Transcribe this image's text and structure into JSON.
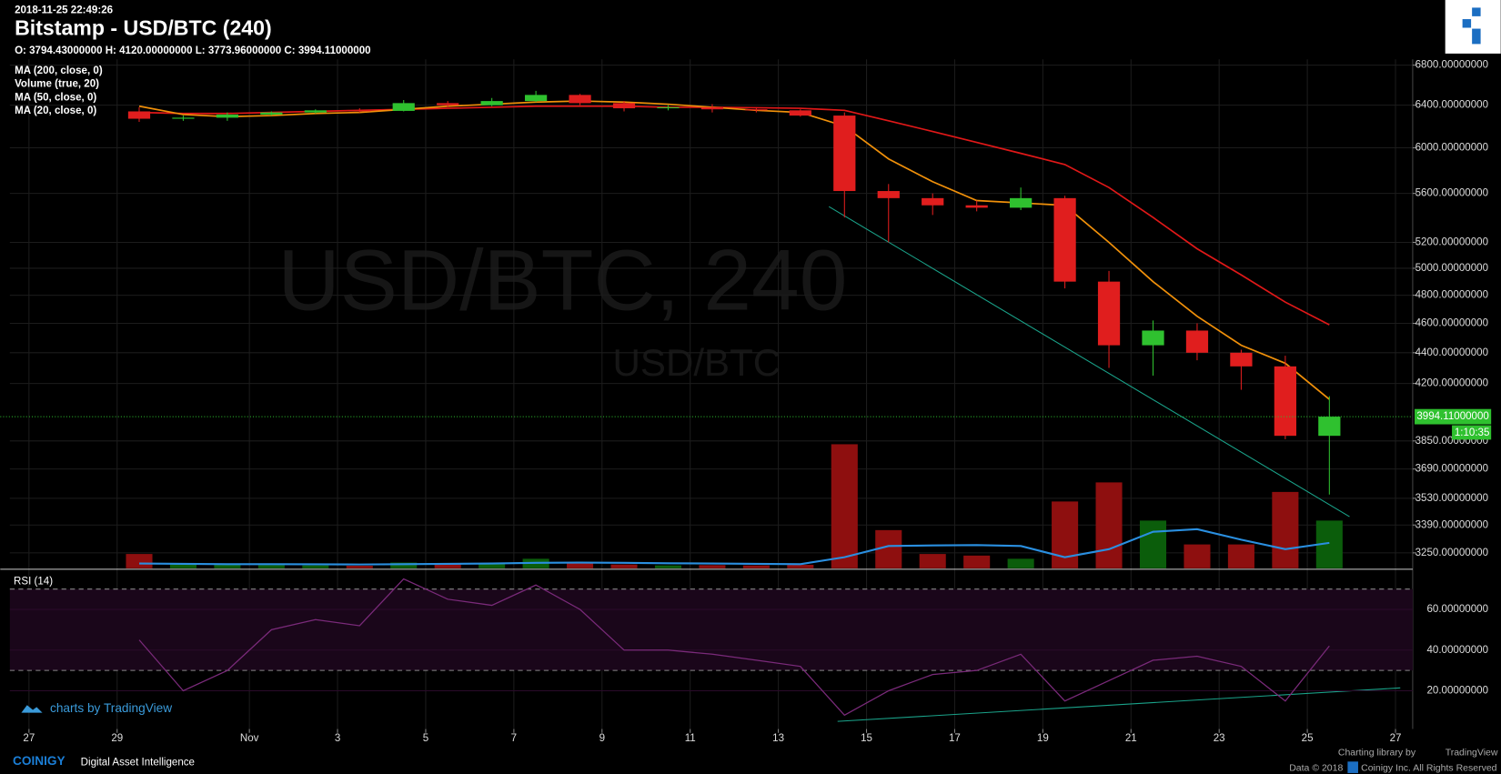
{
  "header": {
    "timestamp": "2018-11-25 22:49:26",
    "title": "Bitstamp - USD/BTC (240)",
    "ohlc": "O: 3794.43000000 H: 4120.00000000 L: 3773.96000000 C: 3994.11000000"
  },
  "watermark": {
    "line1": "USD/BTC, 240",
    "line2": "USD/BTC"
  },
  "branding": {
    "tradingview": "charts by TradingView",
    "coinigy": "COINIGY",
    "tagline": "Digital Asset Intelligence",
    "library": "Charting library by",
    "library_name": "TradingView",
    "copyright": "Data © 2018",
    "company": "Coinigy Inc. All Rights Reserved"
  },
  "chart_data": [
    {
      "type": "candlestick",
      "x": [
        "2018-10-29",
        "2018-10-30",
        "2018-10-31",
        "2018-11-01",
        "2018-11-02",
        "2018-11-03",
        "2018-11-04",
        "2018-11-05",
        "2018-11-06",
        "2018-11-07",
        "2018-11-08",
        "2018-11-09",
        "2018-11-10",
        "2018-11-11",
        "2018-11-12",
        "2018-11-13",
        "2018-11-14",
        "2018-11-15",
        "2018-11-16",
        "2018-11-17",
        "2018-11-18",
        "2018-11-19",
        "2018-11-20",
        "2018-11-21",
        "2018-11-22",
        "2018-11-23",
        "2018-11-24",
        "2018-11-25"
      ],
      "open": [
        6340,
        6270,
        6280,
        6310,
        6330,
        6350,
        6345,
        6420,
        6400,
        6440,
        6500,
        6420,
        6370,
        6380,
        6360,
        6350,
        6300,
        5620,
        5560,
        5500,
        5480,
        5560,
        4900,
        4450,
        4550,
        4400,
        4310,
        3880
      ],
      "high": [
        6380,
        6300,
        6330,
        6340,
        6360,
        6370,
        6450,
        6440,
        6470,
        6540,
        6510,
        6440,
        6400,
        6410,
        6380,
        6360,
        6330,
        5680,
        5600,
        5540,
        5650,
        5580,
        4980,
        4620,
        4600,
        4420,
        4380,
        4120
      ],
      "low": [
        6240,
        6250,
        6250,
        6300,
        6320,
        6330,
        6340,
        6380,
        6390,
        6430,
        6400,
        6340,
        6350,
        6330,
        6330,
        6290,
        5400,
        5200,
        5420,
        5450,
        5460,
        4850,
        4300,
        4250,
        4350,
        4160,
        3860,
        3550
      ],
      "close": [
        6270,
        6280,
        6310,
        6330,
        6350,
        6345,
        6420,
        6400,
        6440,
        6500,
        6420,
        6370,
        6380,
        6360,
        6350,
        6300,
        5620,
        5560,
        5500,
        5480,
        5560,
        4900,
        4450,
        4550,
        4400,
        4310,
        3880,
        3994.11
      ],
      "up_color": "#2fc12f",
      "down_color": "#e01e1e",
      "log_scale": true,
      "grid": true,
      "ylim": [
        3175,
        6860
      ],
      "yticks": [
        {
          "value": 6800,
          "label": "6800.00000000"
        },
        {
          "value": 6400,
          "label": "6400.00000000"
        },
        {
          "value": 6000,
          "label": "6000.00000000"
        },
        {
          "value": 5600,
          "label": "5600.00000000"
        },
        {
          "value": 5200,
          "label": "5200.00000000"
        },
        {
          "value": 5000,
          "label": "5000.00000000"
        },
        {
          "value": 4800,
          "label": "4800.00000000"
        },
        {
          "value": 4600,
          "label": "4600.00000000"
        },
        {
          "value": 4400,
          "label": "4400.00000000"
        },
        {
          "value": 4200,
          "label": "4200.00000000"
        },
        {
          "value": 3850,
          "label": "3850.00000000"
        },
        {
          "value": 3690,
          "label": "3690.00000000"
        },
        {
          "value": 3530,
          "label": "3530.00000000"
        },
        {
          "value": 3390,
          "label": "3390.00000000"
        },
        {
          "value": 3250,
          "label": "3250.00000000"
        }
      ],
      "xlim": [
        "2018-10-26T13:35",
        "2018-11-27T09:22"
      ],
      "xticks": [
        {
          "value": "2018-10-27",
          "label": "27"
        },
        {
          "value": "2018-10-29",
          "label": "29"
        },
        {
          "value": "2018-11-01",
          "label": "Nov"
        },
        {
          "value": "2018-11-03",
          "label": "3"
        },
        {
          "value": "2018-11-05",
          "label": "5"
        },
        {
          "value": "2018-11-07",
          "label": "7"
        },
        {
          "value": "2018-11-09",
          "label": "9"
        },
        {
          "value": "2018-11-11",
          "label": "11"
        },
        {
          "value": "2018-11-13",
          "label": "13"
        },
        {
          "value": "2018-11-15",
          "label": "15"
        },
        {
          "value": "2018-11-17",
          "label": "17"
        },
        {
          "value": "2018-11-19",
          "label": "19"
        },
        {
          "value": "2018-11-21",
          "label": "21"
        },
        {
          "value": "2018-11-23",
          "label": "23"
        },
        {
          "value": "2018-11-25",
          "label": "25"
        },
        {
          "value": "2018-11-27",
          "label": "27"
        }
      ],
      "other_indicators": [
        "MA (200, close, 0)"
      ],
      "volume": {
        "name": "Volume (true, 20)",
        "up_color": "#0b5d0b",
        "down_color": "#8e0f0f",
        "ma_color": "#2a8fe0",
        "vlim": [
          0,
          160000
        ],
        "values": [
          4500,
          1500,
          1200,
          1000,
          900,
          800,
          1800,
          1500,
          1400,
          3000,
          1600,
          1200,
          900,
          1000,
          900,
          1100,
          39000,
          12000,
          4500,
          4000,
          3000,
          21000,
          27000,
          15000,
          7500,
          7500,
          24000,
          15000
        ],
        "ma": [
          1500,
          1400,
          1300,
          1300,
          1250,
          1200,
          1300,
          1400,
          1500,
          1700,
          1800,
          1700,
          1600,
          1500,
          1400,
          1300,
          3500,
          7000,
          7200,
          7300,
          7000,
          3500,
          6000,
          11500,
          12300,
          9000,
          6000,
          8000
        ]
      },
      "series": [
        {
          "name": "MA (50, close, 0)",
          "color": "#e01818",
          "values": [
            6330,
            6320,
            6320,
            6330,
            6340,
            6350,
            6360,
            6370,
            6380,
            6390,
            6390,
            6390,
            6380,
            6380,
            6375,
            6370,
            6350,
            6250,
            6150,
            6050,
            5950,
            5850,
            5650,
            5400,
            5150,
            4950,
            4750,
            4590
          ]
        },
        {
          "name": "MA (20, close, 0)",
          "color": "#f0900a",
          "values": [
            6390,
            6310,
            6290,
            6300,
            6320,
            6330,
            6360,
            6390,
            6410,
            6430,
            6440,
            6430,
            6410,
            6380,
            6350,
            6330,
            6200,
            5900,
            5700,
            5540,
            5520,
            5500,
            5200,
            4900,
            4650,
            4450,
            4330,
            4100
          ]
        }
      ],
      "last_price": {
        "value": 3994.11,
        "label": "3994.11000000"
      },
      "countdown": "1:10:35"
    },
    {
      "type": "line",
      "title": "RSI (14)",
      "color": "#7a2a7a",
      "x": [
        "2018-10-29",
        "2018-10-30",
        "2018-10-31",
        "2018-11-01",
        "2018-11-02",
        "2018-11-03",
        "2018-11-04",
        "2018-11-05",
        "2018-11-06",
        "2018-11-07",
        "2018-11-08",
        "2018-11-09",
        "2018-11-10",
        "2018-11-11",
        "2018-11-12",
        "2018-11-13",
        "2018-11-14",
        "2018-11-15",
        "2018-11-16",
        "2018-11-17",
        "2018-11-18",
        "2018-11-19",
        "2018-11-20",
        "2018-11-21",
        "2018-11-22",
        "2018-11-23",
        "2018-11-24",
        "2018-11-25"
      ],
      "values": [
        45,
        20,
        30,
        50,
        55,
        52,
        75,
        65,
        62,
        72,
        60,
        40,
        40,
        38,
        35,
        32,
        8,
        20,
        28,
        30,
        38,
        15,
        25,
        35,
        37,
        32,
        15,
        42
      ],
      "bands": [
        70,
        30
      ],
      "ylim": [
        1.2,
        78.8
      ],
      "yticks": [
        {
          "value": 60,
          "label": "60.00000000"
        },
        {
          "value": 40,
          "label": "40.00000000"
        },
        {
          "value": 20,
          "label": "20.00000000"
        }
      ]
    }
  ]
}
